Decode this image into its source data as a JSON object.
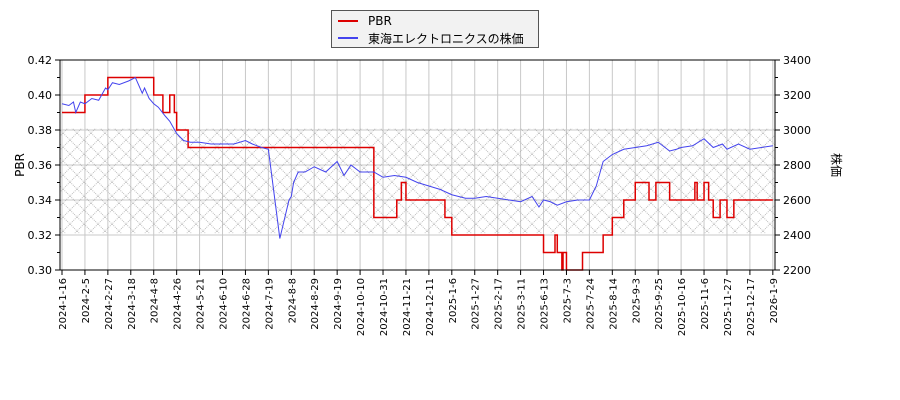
{
  "chart_data": {
    "type": "line",
    "title": "",
    "legend": {
      "position": "top-center",
      "entries": [
        {
          "label": "PBR",
          "color": "#dd0000"
        },
        {
          "label": "東海エレクトロニクスの株価",
          "color": "#4444ee"
        }
      ]
    },
    "xlabel": "",
    "ylabel_left": "PBR",
    "ylabel_right": "株価",
    "ylim_left": [
      0.3,
      0.42
    ],
    "ylim_right": [
      2200,
      3400
    ],
    "yticks_left": [
      "0.30",
      "0.32",
      "0.34",
      "0.36",
      "0.38",
      "0.40",
      "0.42"
    ],
    "yticks_right": [
      "2200",
      "2400",
      "2600",
      "2800",
      "3000",
      "3200",
      "3400"
    ],
    "xticks": [
      "2024-1-16",
      "2024-2-5",
      "2024-2-27",
      "2024-3-18",
      "2024-4-8",
      "2024-4-26",
      "2024-5-21",
      "2024-6-10",
      "2024-6-28",
      "2024-7-19",
      "2024-8-8",
      "2024-8-29",
      "2024-9-19",
      "2024-10-10",
      "2024-10-31",
      "2024-11-21",
      "2024-12-11",
      "2025-1-6",
      "2025-1-27",
      "2025-2-17",
      "2025-3-11",
      "2025-6-13",
      "2025-7-3",
      "2025-7-24",
      "2025-8-14",
      "2025-9-3",
      "2025-9-25",
      "2025-10-16",
      "2025-11-6",
      "2025-11-27",
      "2025-12-17",
      "2026-1-9"
    ],
    "grid": true,
    "shaded_band_left": [
      0.321,
      0.381
    ],
    "series": [
      {
        "name": "PBR",
        "axis": "left",
        "color": "#dd0000",
        "x_tick_index": [
          0,
          0.9,
          1.0,
          1.9,
          2.0,
          3.9,
          4.0,
          4.1,
          4.4,
          4.5,
          4.7,
          4.9,
          5.0,
          5.1,
          5.5,
          5.6,
          5.7,
          6.0,
          9.0,
          12.0,
          13.0,
          13.1,
          13.6,
          13.7,
          14.6,
          14.8,
          15.0,
          15.3,
          16.0,
          16.7,
          17.0,
          17.2,
          17.4,
          18.0,
          19.0,
          20.0,
          20.1,
          21.0,
          21.3,
          21.5,
          21.6,
          21.8,
          21.85,
          22.0,
          22.6,
          22.7,
          22.9,
          23.0,
          23.6,
          24.0,
          24.5,
          24.9,
          25.0,
          25.5,
          25.6,
          25.9,
          26.0,
          26.5,
          27.0,
          27.6,
          27.7,
          28.0,
          28.2,
          28.4,
          28.7,
          28.9,
          29.0,
          29.3,
          29.5,
          29.6,
          30.0,
          30.5,
          31.0
        ],
        "values": [
          0.39,
          0.39,
          0.4,
          0.4,
          0.41,
          0.41,
          0.4,
          0.4,
          0.39,
          0.39,
          0.4,
          0.39,
          0.38,
          0.38,
          0.37,
          0.37,
          0.37,
          0.37,
          0.37,
          0.37,
          0.37,
          0.37,
          0.33,
          0.33,
          0.34,
          0.35,
          0.34,
          0.34,
          0.34,
          0.33,
          0.32,
          0.32,
          0.32,
          0.32,
          0.32,
          0.32,
          0.32,
          0.31,
          0.31,
          0.32,
          0.31,
          0.29,
          0.31,
          0.29,
          0.3,
          0.31,
          0.31,
          0.31,
          0.32,
          0.33,
          0.34,
          0.34,
          0.35,
          0.35,
          0.34,
          0.35,
          0.35,
          0.34,
          0.34,
          0.35,
          0.34,
          0.35,
          0.34,
          0.33,
          0.34,
          0.34,
          0.33,
          0.34,
          0.34,
          0.34,
          0.34,
          0.34,
          0.34
        ]
      },
      {
        "name": "東海エレクトロニクスの株価",
        "axis": "right",
        "color": "#4444ee",
        "x_tick_index": [
          0,
          0.3,
          0.5,
          0.6,
          0.8,
          1.0,
          1.3,
          1.6,
          1.9,
          2.0,
          2.2,
          2.5,
          2.9,
          3.2,
          3.5,
          3.6,
          3.8,
          4.0,
          4.2,
          4.5,
          4.7,
          5.0,
          5.3,
          5.6,
          6.0,
          6.5,
          7.0,
          7.5,
          8.0,
          8.3,
          8.7,
          9.0,
          9.5,
          9.9,
          10.0,
          10.1,
          10.3,
          10.6,
          11.0,
          11.5,
          12.0,
          12.3,
          12.6,
          13.0,
          13.3,
          13.6,
          14.0,
          14.5,
          15.0,
          15.5,
          16.0,
          16.5,
          17.0,
          17.3,
          17.6,
          18.0,
          18.5,
          19.0,
          19.5,
          20.0,
          20.5,
          20.8,
          21.0,
          21.3,
          21.6,
          22.0,
          22.5,
          23.0,
          23.3,
          23.6,
          24.0,
          24.5,
          25.0,
          25.5,
          26.0,
          26.5,
          26.8,
          27.0,
          27.5,
          28.0,
          28.4,
          28.8,
          29.0,
          29.5,
          30.0,
          30.5,
          31.0
        ],
        "values": [
          3150,
          3140,
          3160,
          3100,
          3160,
          3150,
          3180,
          3170,
          3240,
          3230,
          3270,
          3260,
          3280,
          3300,
          3210,
          3240,
          3180,
          3150,
          3130,
          3080,
          3050,
          2980,
          2940,
          2930,
          2930,
          2920,
          2920,
          2920,
          2940,
          2920,
          2900,
          2890,
          2380,
          2600,
          2620,
          2700,
          2760,
          2760,
          2790,
          2760,
          2820,
          2740,
          2800,
          2760,
          2760,
          2760,
          2730,
          2740,
          2730,
          2700,
          2680,
          2660,
          2630,
          2620,
          2610,
          2610,
          2620,
          2610,
          2600,
          2590,
          2620,
          2560,
          2600,
          2590,
          2570,
          2590,
          2600,
          2600,
          2680,
          2820,
          2860,
          2890,
          2900,
          2910,
          2930,
          2880,
          2890,
          2900,
          2910,
          2950,
          2900,
          2920,
          2890,
          2920,
          2890,
          2900,
          2910
        ]
      }
    ]
  }
}
